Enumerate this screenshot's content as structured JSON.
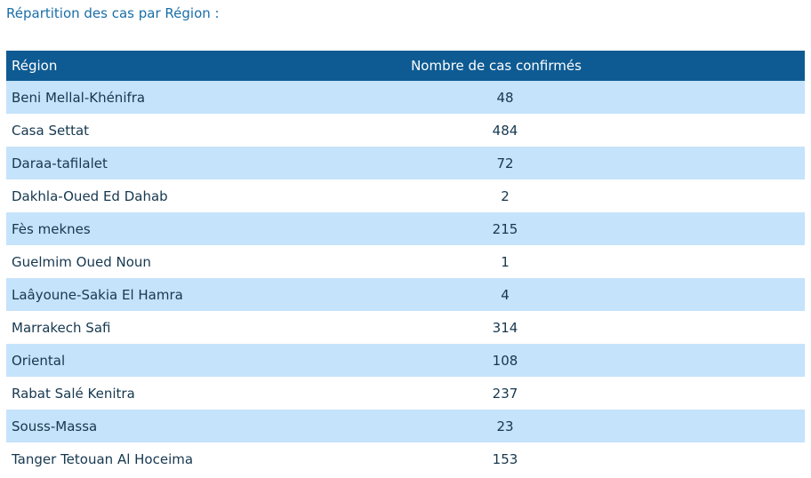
{
  "heading": "Répartition des cas par Région :",
  "table": {
    "headers": {
      "region": "Région",
      "count": "Nombre de cas confirmés"
    },
    "rows": [
      {
        "region": "Beni Mellal-Khénifra",
        "count": "48"
      },
      {
        "region": "Casa Settat",
        "count": "484"
      },
      {
        "region": "Daraa-tafilalet",
        "count": "72"
      },
      {
        "region": "Dakhla-Oued Ed Dahab",
        "count": "2"
      },
      {
        "region": "Fès meknes",
        "count": "215"
      },
      {
        "region": "Guelmim Oued Noun",
        "count": "1"
      },
      {
        "region": "Laâyoune-Sakia El Hamra",
        "count": "4"
      },
      {
        "region": "Marrakech Safi",
        "count": "314"
      },
      {
        "region": "Oriental",
        "count": "108"
      },
      {
        "region": "Rabat Salé Kenitra",
        "count": "237"
      },
      {
        "region": "Souss-Massa",
        "count": "23"
      },
      {
        "region": "Tanger Tetouan Al Hoceima",
        "count": "153"
      }
    ]
  },
  "colors": {
    "heading_text": "#1a6ea8",
    "header_bg": "#0e5b93",
    "row_shaded": "#c5e3fb",
    "row_plain": "#ffffff",
    "cell_text": "#16384f"
  }
}
